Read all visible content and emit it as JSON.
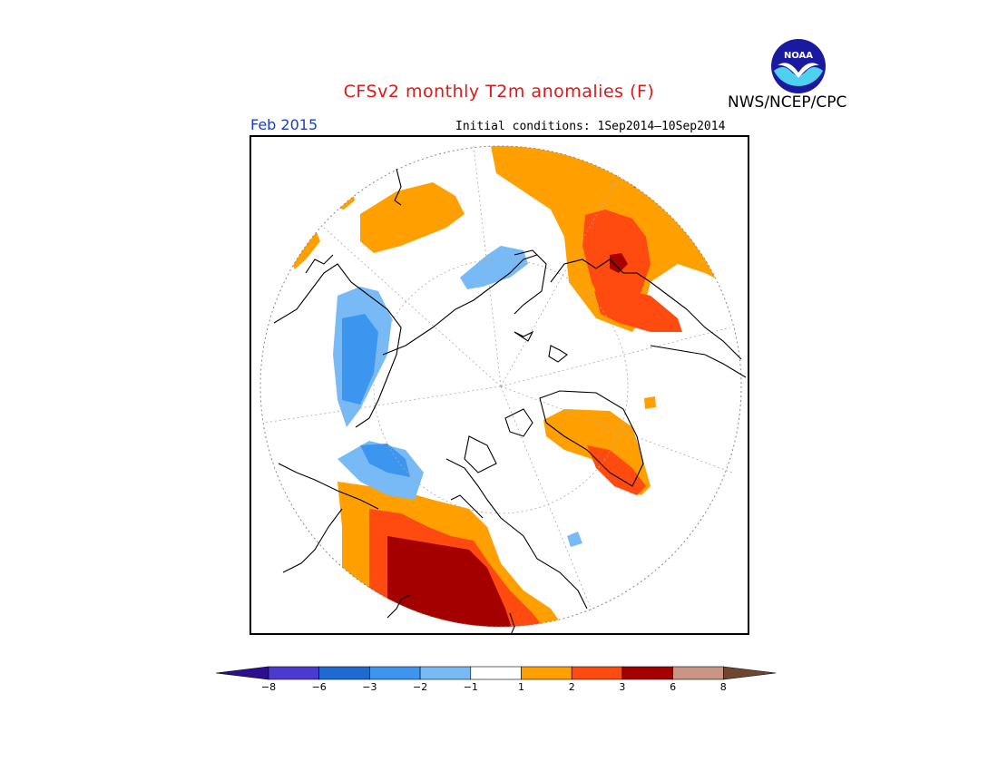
{
  "header": {
    "title": "CFSv2 monthly T2m anomalies (F)",
    "valid_month": "Feb 2015",
    "initial_conditions": "Initial conditions: 1Sep2014–10Sep2014",
    "agency": "NWS/NCEP/CPC"
  },
  "logo": {
    "text": "NOAA",
    "colors": {
      "outer": "#1a1aa0",
      "water": "#4fd0f0",
      "bird": "#ffffff"
    }
  },
  "colorbar": {
    "bins": [
      {
        "color": "#2a1090",
        "range": "< -8"
      },
      {
        "color": "#4a3ad0",
        "range": "-8 to -6"
      },
      {
        "color": "#1e6ad0",
        "range": "-6 to -3"
      },
      {
        "color": "#3c96f0",
        "range": "-3 to -2"
      },
      {
        "color": "#78baf5",
        "range": "-2 to -1"
      },
      {
        "color": "#ffffff",
        "range": "-1 to 1"
      },
      {
        "color": "#ffa000",
        "range": "1 to 2"
      },
      {
        "color": "#ff4a10",
        "range": "2 to 3"
      },
      {
        "color": "#a50000",
        "range": "3 to 6"
      },
      {
        "color": "#c89682",
        "range": "6 to 8"
      },
      {
        "color": "#6e4632",
        "range": "> 8"
      }
    ],
    "tick_labels": [
      "-8",
      "-6",
      "-3",
      "-2",
      "-1",
      "1",
      "2",
      "3",
      "6",
      "8"
    ]
  }
}
